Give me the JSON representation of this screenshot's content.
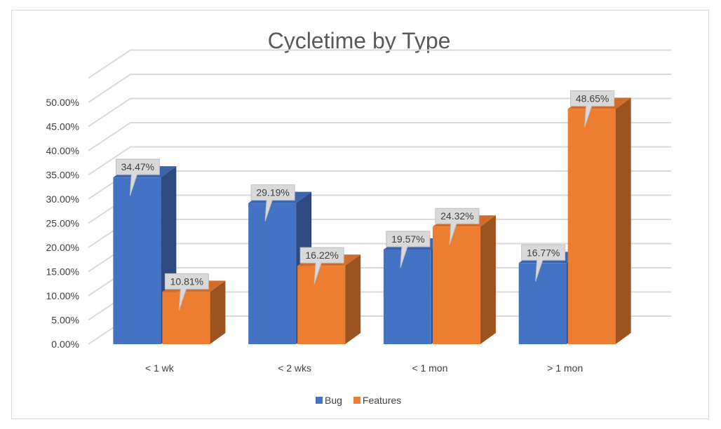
{
  "chart_data": {
    "type": "bar",
    "title": "Cycletime by Type",
    "categories": [
      "< 1 wk",
      "< 2 wks",
      "< 1 mon",
      "> 1 mon"
    ],
    "series": [
      {
        "name": "Bug",
        "values": [
          34.47,
          29.19,
          19.57,
          16.77
        ],
        "labels": [
          "34.47%",
          "29.19%",
          "19.57%",
          "16.77%"
        ],
        "color": "#4472C4"
      },
      {
        "name": "Features",
        "values": [
          10.81,
          16.22,
          24.32,
          48.65
        ],
        "labels": [
          "10.81%",
          "16.22%",
          "24.32%",
          "48.65%"
        ],
        "color": "#ED7D31"
      }
    ],
    "ylim": [
      0,
      50
    ],
    "yticks": [
      0,
      5,
      10,
      15,
      20,
      25,
      30,
      35,
      40,
      45,
      50
    ],
    "ytick_labels": [
      "0.00%",
      "5.00%",
      "10.00%",
      "15.00%",
      "20.00%",
      "25.00%",
      "30.00%",
      "35.00%",
      "40.00%",
      "45.00%",
      "50.00%"
    ],
    "grid": true,
    "legend": "bottom",
    "style": "3d-clustered-column"
  }
}
